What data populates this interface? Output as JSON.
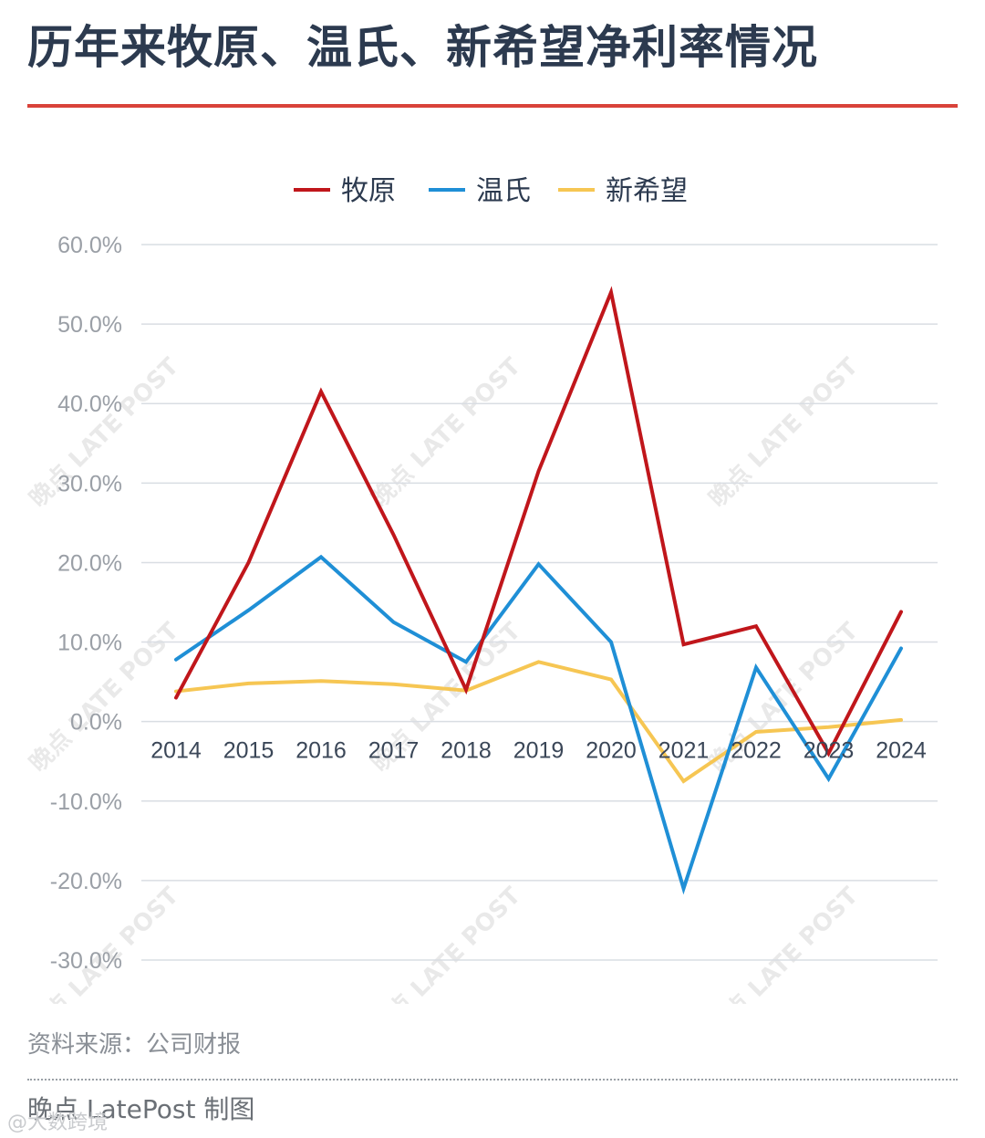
{
  "title": "历年来牧原、温氏、新希望净利率情况",
  "footer": {
    "source": "资料来源：公司财报",
    "credit": "晚点 LatePost 制图",
    "weibo_watermark": "@大数跨境"
  },
  "watermark_text": "晚点 LATE POST",
  "chart_data": {
    "type": "line",
    "title": "",
    "xlabel": "",
    "ylabel": "",
    "categories": [
      "2014",
      "2015",
      "2016",
      "2017",
      "2018",
      "2019",
      "2020",
      "2021",
      "2022",
      "2023",
      "2024"
    ],
    "y_ticks": [
      60,
      50,
      40,
      30,
      20,
      10,
      0,
      -10,
      -20,
      -30
    ],
    "y_tick_labels": [
      "60.0%",
      "50.0%",
      "40.0%",
      "30.0%",
      "20.0%",
      "10.0%",
      "0.0%",
      "-10.0%",
      "-20.0%",
      "-30.0%"
    ],
    "ylim": [
      -30,
      60
    ],
    "grid": true,
    "legend_position": "top-center",
    "series": [
      {
        "name": "牧原",
        "color": "#c0161b",
        "values": [
          3.0,
          20.0,
          41.5,
          23.5,
          4.0,
          31.5,
          54.0,
          9.7,
          12.0,
          -4.0,
          13.8
        ]
      },
      {
        "name": "温氏",
        "color": "#1f8fd6",
        "values": [
          7.8,
          14.0,
          20.7,
          12.5,
          7.5,
          19.8,
          10.0,
          -21.0,
          6.8,
          -7.2,
          9.2
        ]
      },
      {
        "name": "新希望",
        "color": "#f6c653",
        "values": [
          3.8,
          4.8,
          5.1,
          4.7,
          3.9,
          7.5,
          5.3,
          -7.5,
          -1.3,
          -0.7,
          0.2
        ]
      }
    ]
  }
}
